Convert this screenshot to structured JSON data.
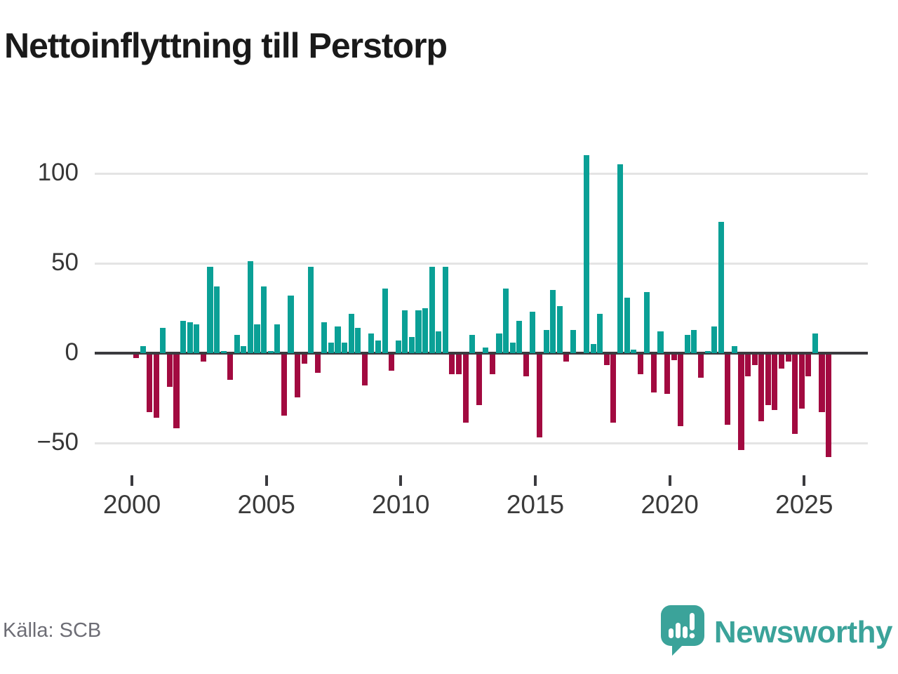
{
  "title": "Nettoinflyttning till Perstorp",
  "source_label": "Källa: SCB",
  "branding": {
    "logo_text": "Newsworthy",
    "logo_icon": "bar-chart-speech-bubble-icon"
  },
  "colors": {
    "positive": "#0aa096",
    "negative": "#a20a40",
    "grid": "#e4e4e4",
    "zero_axis": "#3b3b3f",
    "title_text": "#1a1a1a",
    "tick_text": "#3a3a3a",
    "source_text": "#6d6d75",
    "brand_teal": "#3ba39a"
  },
  "chart_data": {
    "type": "bar",
    "frequency": "quarterly",
    "period_start": "2000-Q1",
    "period_end": "2025-Q4",
    "title": "Nettoinflyttning till Perstorp",
    "xlabel": "",
    "ylabel": "",
    "grid": "horizontal",
    "y_ticks": [
      100,
      50,
      0,
      -50
    ],
    "x_ticks": [
      2000,
      2005,
      2010,
      2015,
      2020,
      2025
    ],
    "ylim": [
      -62,
      118
    ],
    "values": [
      -2,
      4,
      -32,
      -35,
      14,
      -18,
      -41,
      18,
      17,
      16,
      -4,
      48,
      37,
      1,
      -14,
      10,
      4,
      51,
      16,
      37,
      1,
      16,
      -34,
      32,
      -24,
      -5,
      48,
      -10,
      17,
      6,
      15,
      6,
      22,
      14,
      -17,
      11,
      7,
      36,
      -9,
      7,
      24,
      9,
      24,
      25,
      48,
      12,
      48,
      -11,
      -11,
      -38,
      10,
      -28,
      3,
      -11,
      11,
      36,
      6,
      18,
      -12,
      23,
      -46,
      13,
      35,
      26,
      -4,
      13,
      0,
      110,
      5,
      22,
      -6,
      -38,
      105,
      31,
      2,
      -11,
      34,
      -21,
      12,
      -22,
      -3,
      -40,
      10,
      13,
      -13,
      1,
      15,
      73,
      -39,
      4,
      -53,
      -12,
      -6,
      -37,
      -28,
      -31,
      -8,
      -4,
      -44,
      -30,
      -12,
      11,
      -32,
      -57
    ]
  }
}
